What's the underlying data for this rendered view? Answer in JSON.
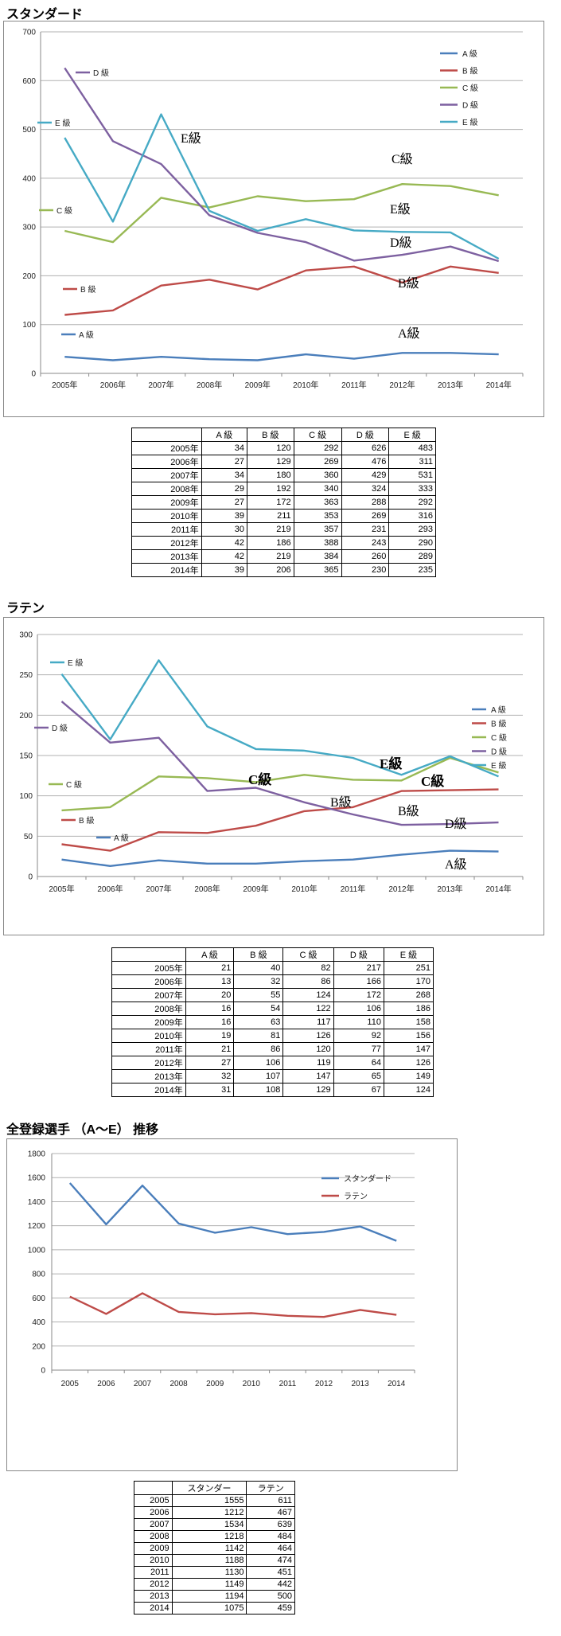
{
  "sections": [
    {
      "title": "スタンダード"
    },
    {
      "title": "ラテン"
    },
    {
      "title": "全登録選手 （A～E） 推移"
    }
  ],
  "chart_data": [
    {
      "type": "line",
      "title": "",
      "categories": [
        "2005年",
        "2006年",
        "2007年",
        "2008年",
        "2009年",
        "2010年",
        "2011年",
        "2012年",
        "2013年",
        "2014年"
      ],
      "ylim": [
        0,
        700
      ],
      "yticks": [
        0,
        100,
        200,
        300,
        400,
        500,
        600,
        700
      ],
      "grid": true,
      "legend": "top-right",
      "series": [
        {
          "name": "A 級",
          "color": "#4a7ebb",
          "values": [
            34,
            27,
            34,
            29,
            27,
            39,
            30,
            42,
            42,
            39
          ]
        },
        {
          "name": "B 級",
          "color": "#be4b48",
          "values": [
            120,
            129,
            180,
            192,
            172,
            211,
            219,
            186,
            219,
            206
          ]
        },
        {
          "name": "C 級",
          "color": "#98b954",
          "values": [
            292,
            269,
            360,
            340,
            363,
            353,
            357,
            388,
            384,
            365
          ]
        },
        {
          "name": "D 級",
          "color": "#7d60a0",
          "values": [
            626,
            476,
            429,
            324,
            288,
            269,
            231,
            243,
            260,
            230
          ]
        },
        {
          "name": "E 級",
          "color": "#46aac5",
          "values": [
            483,
            311,
            531,
            333,
            292,
            316,
            293,
            290,
            289,
            235
          ]
        }
      ],
      "inline_labels": [
        "D 級",
        "E 級",
        "C 級",
        "B 級",
        "A 級"
      ],
      "annotations": [
        "E級",
        "C級",
        "E級",
        "D級",
        "B級",
        "A級"
      ]
    },
    {
      "type": "line",
      "title": "",
      "categories": [
        "2005年",
        "2006年",
        "2007年",
        "2008年",
        "2009年",
        "2010年",
        "2011年",
        "2012年",
        "2013年",
        "2014年"
      ],
      "ylim": [
        0,
        300
      ],
      "yticks": [
        0,
        50,
        100,
        150,
        200,
        250,
        300
      ],
      "grid": true,
      "legend": "right",
      "series": [
        {
          "name": "A 級",
          "color": "#4a7ebb",
          "values": [
            21,
            13,
            20,
            16,
            16,
            19,
            21,
            27,
            32,
            31
          ]
        },
        {
          "name": "B 級",
          "color": "#be4b48",
          "values": [
            40,
            32,
            55,
            54,
            63,
            81,
            86,
            106,
            107,
            108
          ]
        },
        {
          "name": "C 級",
          "color": "#98b954",
          "values": [
            82,
            86,
            124,
            122,
            117,
            126,
            120,
            119,
            147,
            129
          ]
        },
        {
          "name": "D 級",
          "color": "#7d60a0",
          "values": [
            217,
            166,
            172,
            106,
            110,
            92,
            77,
            64,
            65,
            67
          ]
        },
        {
          "name": "E 級",
          "color": "#46aac5",
          "values": [
            251,
            170,
            268,
            186,
            158,
            156,
            147,
            126,
            149,
            124
          ]
        }
      ],
      "inline_labels": [
        "E 級",
        "D 級",
        "C 級",
        "B 級",
        "A 級"
      ],
      "annotations": [
        "E級",
        "C級",
        "C級",
        "B級",
        "B級",
        "D級",
        "A級"
      ]
    },
    {
      "type": "line",
      "title": "",
      "categories": [
        "2005",
        "2006",
        "2007",
        "2008",
        "2009",
        "2010",
        "2011",
        "2012",
        "2013",
        "2014"
      ],
      "ylim": [
        0,
        1800
      ],
      "yticks": [
        0,
        200,
        400,
        600,
        800,
        1000,
        1200,
        1400,
        1600,
        1800
      ],
      "grid": true,
      "legend": "top-right",
      "series": [
        {
          "name": "スタンダード",
          "color": "#4a7ebb",
          "values": [
            1555,
            1212,
            1534,
            1218,
            1142,
            1188,
            1130,
            1149,
            1194,
            1075
          ]
        },
        {
          "name": "ラテン",
          "color": "#be4b48",
          "values": [
            611,
            467,
            639,
            484,
            464,
            474,
            451,
            442,
            500,
            459
          ]
        }
      ]
    }
  ],
  "tables": [
    {
      "headers": [
        "",
        "A 級",
        "B 級",
        "C 級",
        "D 級",
        "E 級"
      ],
      "rows": [
        [
          "2005年",
          "34",
          "120",
          "292",
          "626",
          "483"
        ],
        [
          "2006年",
          "27",
          "129",
          "269",
          "476",
          "311"
        ],
        [
          "2007年",
          "34",
          "180",
          "360",
          "429",
          "531"
        ],
        [
          "2008年",
          "29",
          "192",
          "340",
          "324",
          "333"
        ],
        [
          "2009年",
          "27",
          "172",
          "363",
          "288",
          "292"
        ],
        [
          "2010年",
          "39",
          "211",
          "353",
          "269",
          "316"
        ],
        [
          "2011年",
          "30",
          "219",
          "357",
          "231",
          "293"
        ],
        [
          "2012年",
          "42",
          "186",
          "388",
          "243",
          "290"
        ],
        [
          "2013年",
          "42",
          "219",
          "384",
          "260",
          "289"
        ],
        [
          "2014年",
          "39",
          "206",
          "365",
          "230",
          "235"
        ]
      ]
    },
    {
      "headers": [
        "",
        "A 級",
        "B 級",
        "C 級",
        "D 級",
        "E 級"
      ],
      "rows": [
        [
          "2005年",
          "21",
          "40",
          "82",
          "217",
          "251"
        ],
        [
          "2006年",
          "13",
          "32",
          "86",
          "166",
          "170"
        ],
        [
          "2007年",
          "20",
          "55",
          "124",
          "172",
          "268"
        ],
        [
          "2008年",
          "16",
          "54",
          "122",
          "106",
          "186"
        ],
        [
          "2009年",
          "16",
          "63",
          "117",
          "110",
          "158"
        ],
        [
          "2010年",
          "19",
          "81",
          "126",
          "92",
          "156"
        ],
        [
          "2011年",
          "21",
          "86",
          "120",
          "77",
          "147"
        ],
        [
          "2012年",
          "27",
          "106",
          "119",
          "64",
          "126"
        ],
        [
          "2013年",
          "32",
          "107",
          "147",
          "65",
          "149"
        ],
        [
          "2014年",
          "31",
          "108",
          "129",
          "67",
          "124"
        ]
      ]
    },
    {
      "headers": [
        "",
        "スタンダー",
        "ラテン"
      ],
      "rows": [
        [
          "2005",
          "1555",
          "611"
        ],
        [
          "2006",
          "1212",
          "467"
        ],
        [
          "2007",
          "1534",
          "639"
        ],
        [
          "2008",
          "1218",
          "484"
        ],
        [
          "2009",
          "1142",
          "464"
        ],
        [
          "2010",
          "1188",
          "474"
        ],
        [
          "2011",
          "1130",
          "451"
        ],
        [
          "2012",
          "1149",
          "442"
        ],
        [
          "2013",
          "1194",
          "500"
        ],
        [
          "2014",
          "1075",
          "459"
        ]
      ]
    }
  ]
}
